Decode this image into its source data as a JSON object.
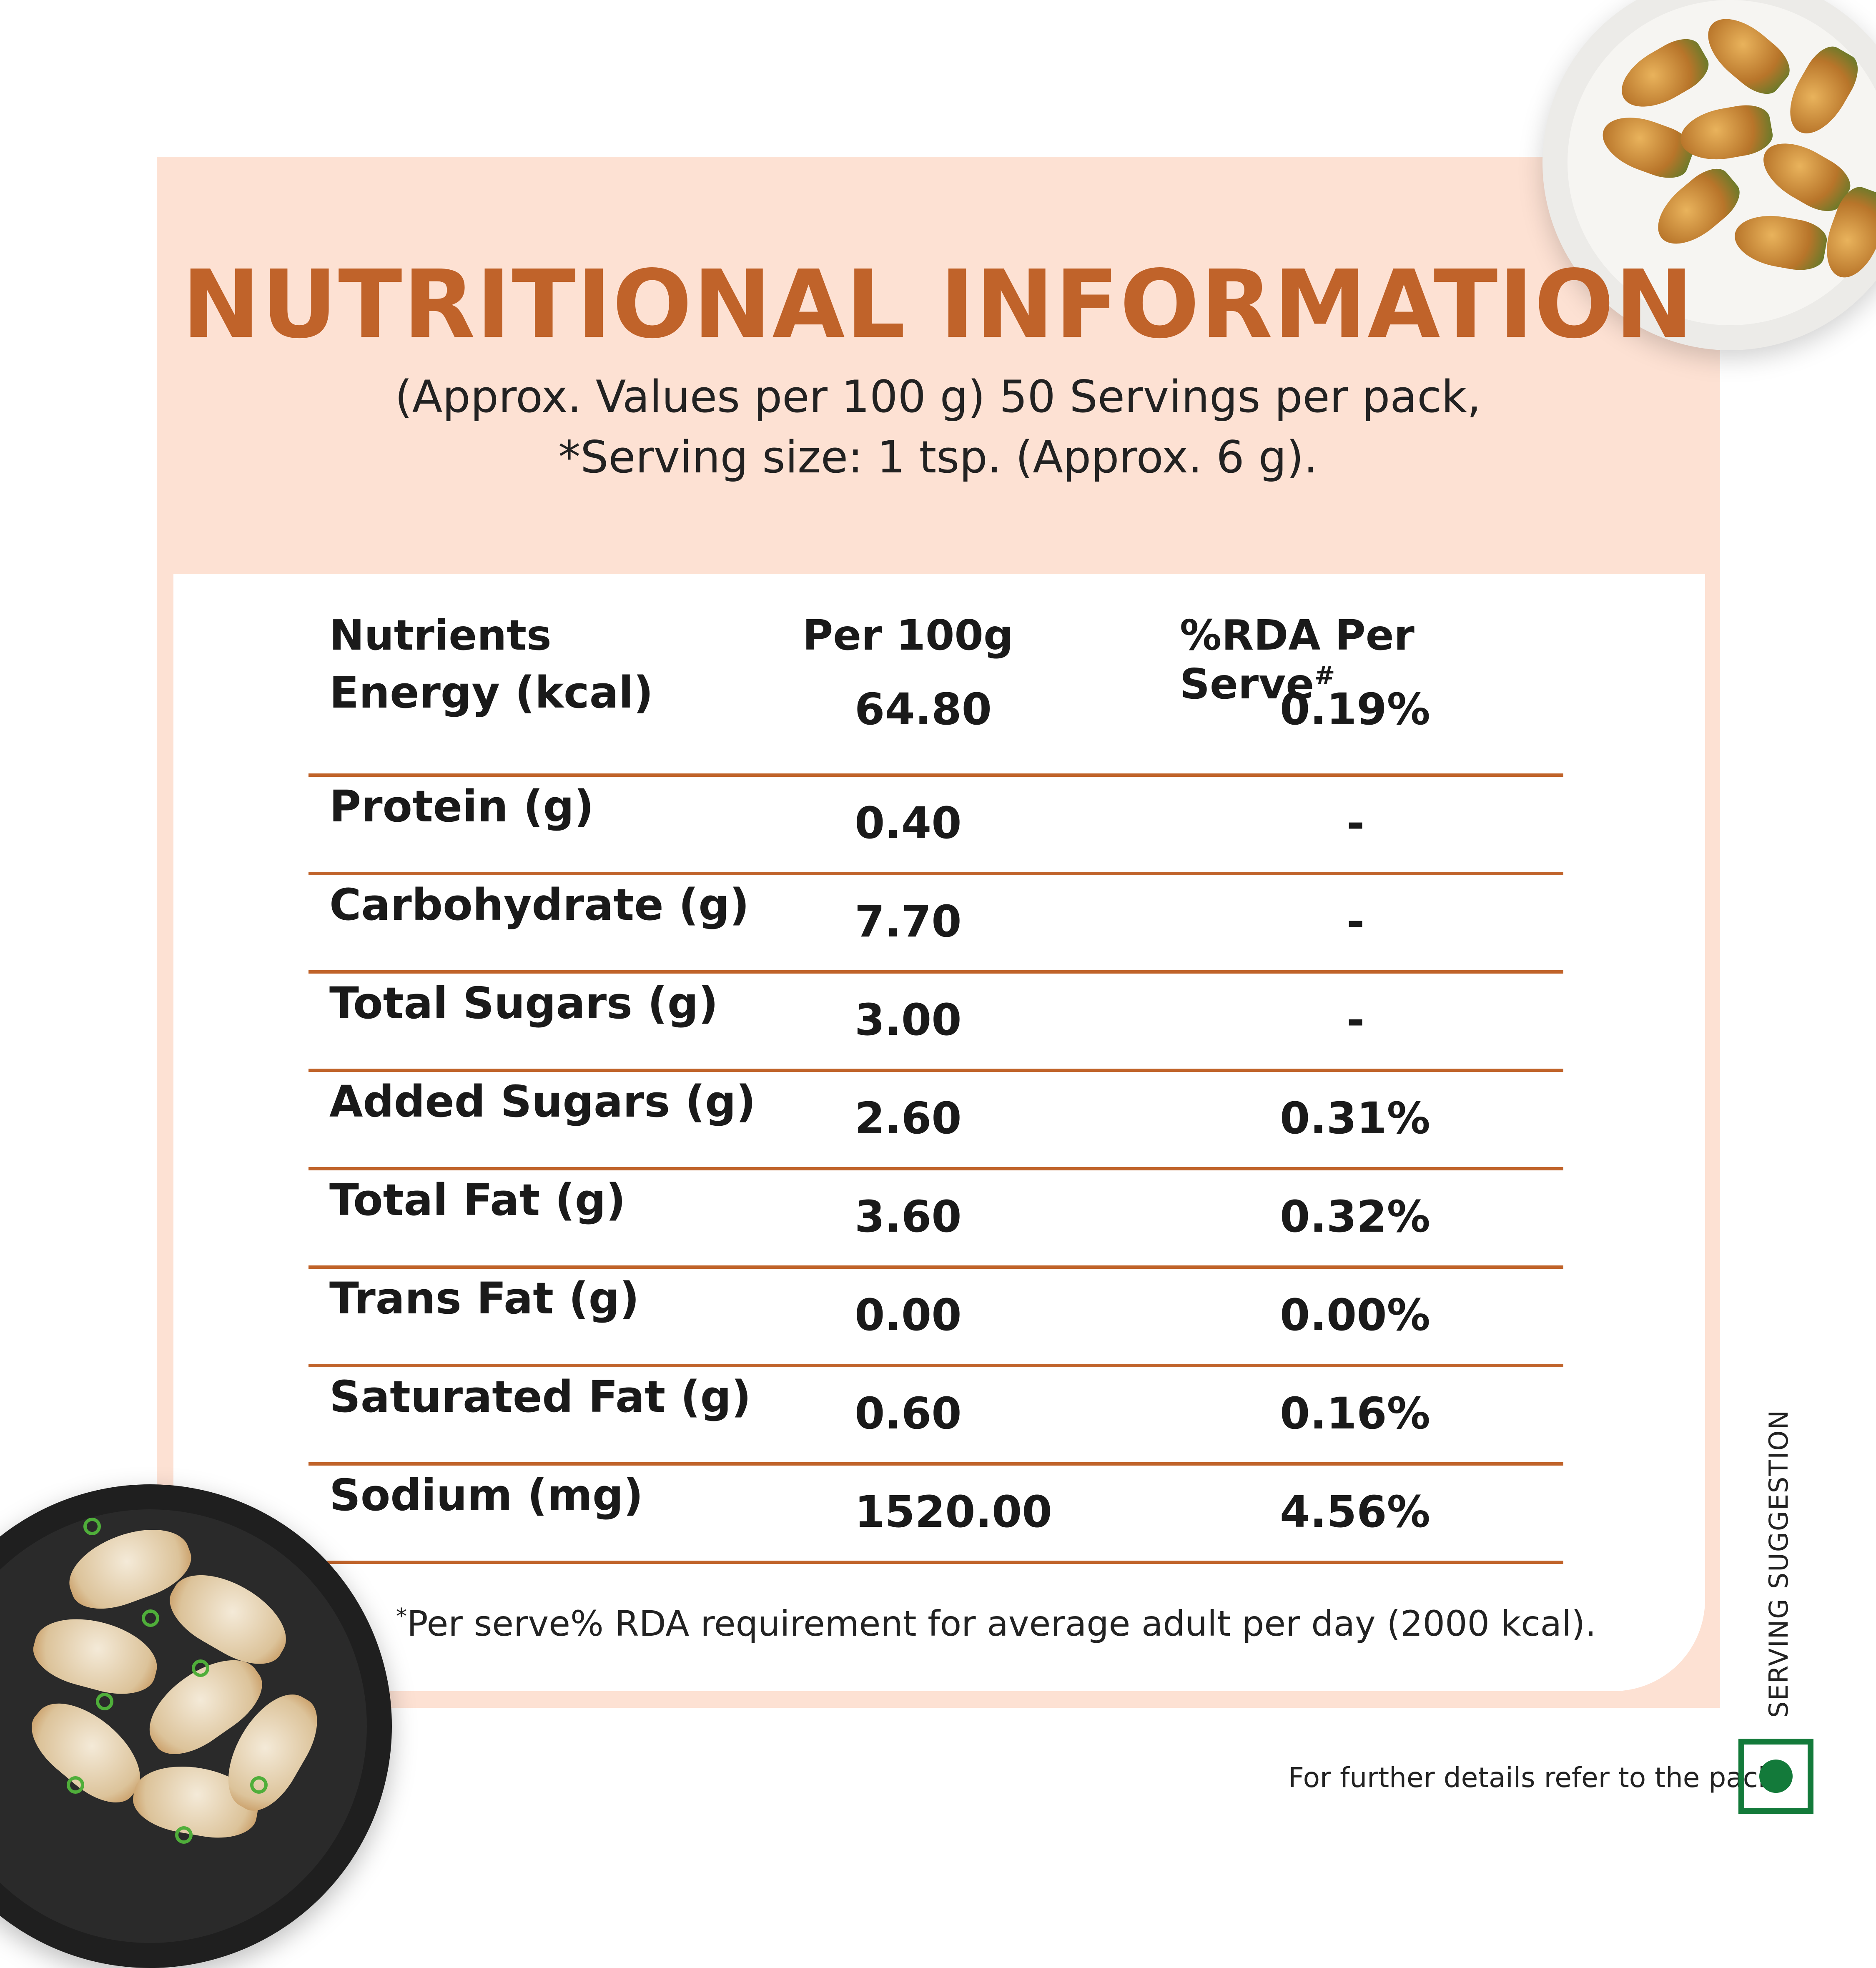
{
  "title": "NUTRITIONAL INFORMATION",
  "subtitle_line1": "(Approx. Values per 100 g) 50 Servings per pack,",
  "subtitle_line2": "*Serving size: 1 tsp. (Approx. 6 g).",
  "table": {
    "headers": {
      "nutrients": "Nutrients",
      "per100": "Per 100g",
      "rda": "%RDA Per Serve",
      "rda_mark": "#"
    },
    "rows": [
      {
        "name": "Energy (kcal)",
        "per100": "64.80",
        "rda": "0.19%"
      },
      {
        "name": "Protein (g)",
        "per100": "0.40",
        "rda": "-"
      },
      {
        "name": "Carbohydrate (g)",
        "per100": "7.70",
        "rda": "-"
      },
      {
        "name": "Total Sugars (g)",
        "per100": "3.00",
        "rda": "-"
      },
      {
        "name": "Added Sugars (g)",
        "per100": "2.60",
        "rda": "0.31%"
      },
      {
        "name": "Total Fat (g)",
        "per100": "3.60",
        "rda": "0.32%"
      },
      {
        "name": "Trans Fat (g)",
        "per100": "0.00",
        "rda": "0.00%"
      },
      {
        "name": "Saturated Fat (g)",
        "per100": "0.60",
        "rda": "0.16%"
      },
      {
        "name": "Sodium (mg)",
        "per100": "1520.00",
        "rda": "4.56%"
      }
    ]
  },
  "footnote_mark": "*",
  "footnote": "Per serve% RDA requirement for average adult per day (2000 kcal).",
  "serving_suggestion": "SERVING SUGGESTION",
  "refer_note": "For further details refer to the pack.",
  "colors": {
    "accent": "#c0632a",
    "panel": "#fde1d3",
    "veg_green": "#137a3a"
  },
  "icons": {
    "veg_mark": "veg-symbol-icon"
  }
}
